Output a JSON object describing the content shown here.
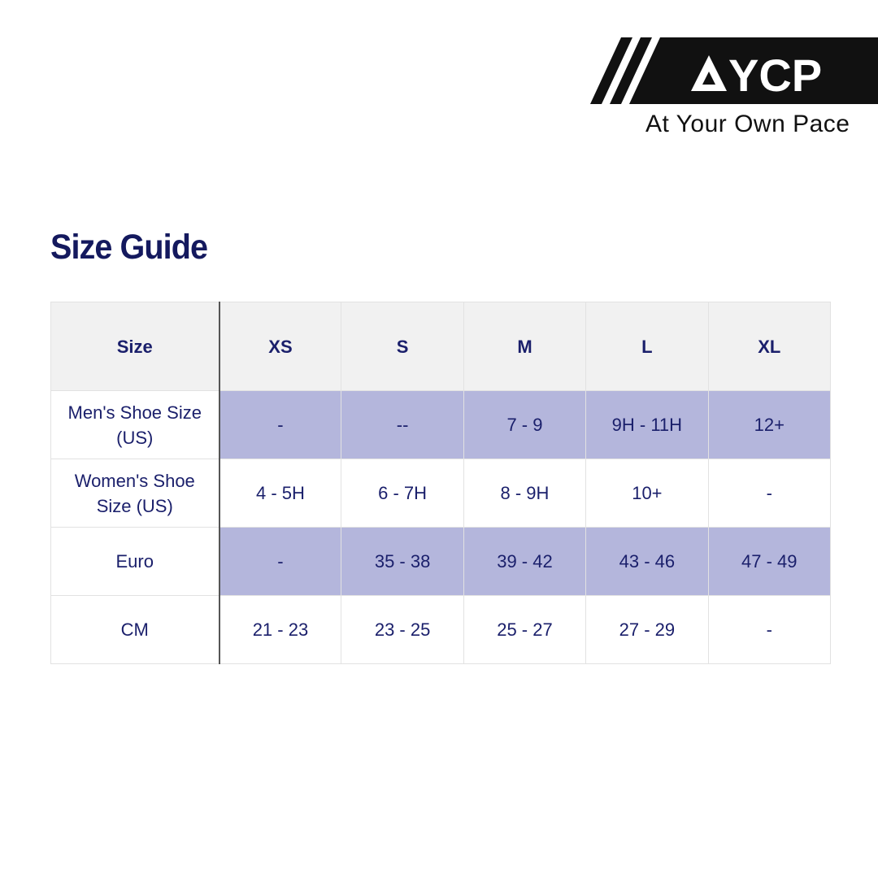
{
  "brand": {
    "logo_text": "AYCP",
    "tagline": "At Your Own Pace"
  },
  "title": "Size Guide",
  "table": {
    "headers": [
      "Size",
      "XS",
      "S",
      "M",
      "L",
      "XL"
    ],
    "rows": [
      {
        "label": "Men's Shoe Size (US)",
        "values": [
          "-",
          "--",
          "7 - 9",
          "9H - 11H",
          "12+"
        ],
        "shaded": true
      },
      {
        "label": "Women's Shoe Size (US)",
        "values": [
          "4 - 5H",
          "6 - 7H",
          "8 - 9H",
          "10+",
          "-"
        ],
        "shaded": false
      },
      {
        "label": "Euro",
        "values": [
          "-",
          "35 - 38",
          "39 - 42",
          "43 - 46",
          "47 - 49"
        ],
        "shaded": true
      },
      {
        "label": "CM",
        "values": [
          "21 - 23",
          "23 - 25",
          "25 - 27",
          "27 - 29",
          "-"
        ],
        "shaded": false
      }
    ]
  },
  "colors": {
    "heading": "#14195e",
    "shade": "#b4b6dc",
    "header_bg": "#f1f1f1"
  }
}
